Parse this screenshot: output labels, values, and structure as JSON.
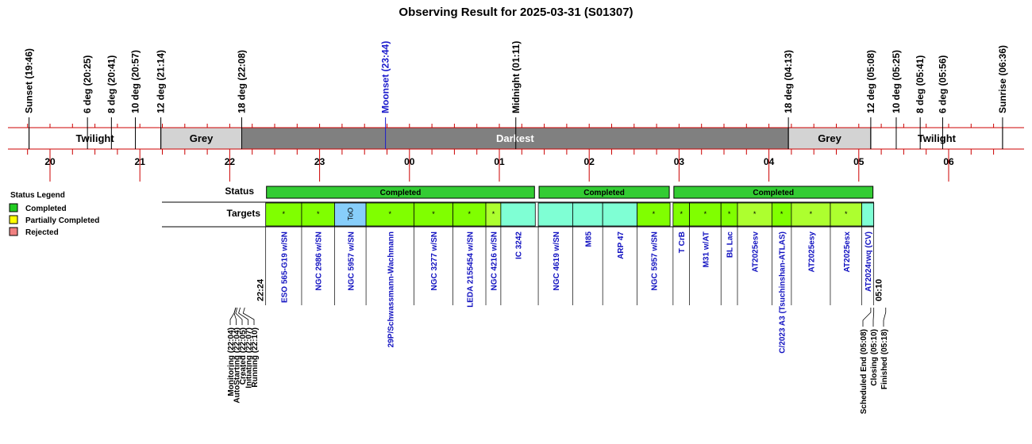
{
  "chart_data": {
    "type": "timeline",
    "title": "Observing Result for 2025-03-31 (S01307)",
    "time_axis": {
      "start": "19:40",
      "end": "06:40",
      "hour_labels": [
        "20",
        "21",
        "22",
        "23",
        "00",
        "01",
        "02",
        "03",
        "04",
        "05",
        "06"
      ]
    },
    "sky_events": [
      {
        "label": "Sunset (19:46)",
        "time": "19:46",
        "color": "#000000"
      },
      {
        "label": "6 deg (20:25)",
        "time": "20:25",
        "color": "#000000"
      },
      {
        "label": "8 deg (20:41)",
        "time": "20:41",
        "color": "#000000"
      },
      {
        "label": "10 deg (20:57)",
        "time": "20:57",
        "color": "#000000"
      },
      {
        "label": "12 deg (21:14)",
        "time": "21:14",
        "color": "#000000"
      },
      {
        "label": "18 deg (22:08)",
        "time": "22:08",
        "color": "#000000"
      },
      {
        "label": "Moonset (23:44)",
        "time": "23:44",
        "color": "#1a1acc"
      },
      {
        "label": "Midnight (01:11)",
        "time": "01:11",
        "color": "#000000"
      },
      {
        "label": "18 deg (04:13)",
        "time": "04:13",
        "color": "#000000"
      },
      {
        "label": "12 deg (05:08)",
        "time": "05:08",
        "color": "#000000"
      },
      {
        "label": "10 deg (05:25)",
        "time": "05:25",
        "color": "#000000"
      },
      {
        "label": "8 deg (05:41)",
        "time": "05:41",
        "color": "#000000"
      },
      {
        "label": "6 deg (05:56)",
        "time": "05:56",
        "color": "#000000"
      },
      {
        "label": "Sunrise (06:36)",
        "time": "06:36",
        "color": "#000000"
      }
    ],
    "sky_bands": [
      {
        "label": "Twilight",
        "start": "19:46",
        "end": "21:14",
        "color": "#ffffff",
        "text_color": "#000000"
      },
      {
        "label": "Grey",
        "start": "21:14",
        "end": "22:08",
        "color": "#d3d3d3",
        "text_color": "#000000"
      },
      {
        "label": "Darkest",
        "start": "22:08",
        "end": "04:13",
        "color": "#808080",
        "text_color": "#ffffff"
      },
      {
        "label": "Grey",
        "start": "04:13",
        "end": "05:08",
        "color": "#d3d3d3",
        "text_color": "#000000"
      },
      {
        "label": "Twilight",
        "start": "05:08",
        "end": "06:36",
        "color": "#ffffff",
        "text_color": "#000000"
      }
    ],
    "rows": [
      "Status",
      "Targets"
    ],
    "status_segments": [
      {
        "label": "Completed",
        "start": "22:24",
        "end": "01:24"
      },
      {
        "label": "Completed",
        "start": "01:26",
        "end": "02:54"
      },
      {
        "label": "Completed",
        "start": "02:56",
        "end": "05:10"
      }
    ],
    "targets": [
      {
        "name": "ESO 565-G19 w/SN",
        "start": "22:24",
        "end": "22:48",
        "color": "#80ff00",
        "mark": "*"
      },
      {
        "name": "NGC 2986 w/SN",
        "start": "22:48",
        "end": "23:10",
        "color": "#80ff00",
        "mark": "*"
      },
      {
        "name": "NGC 5957 w/SN",
        "start": "23:10",
        "end": "23:31",
        "color": "#87cefa",
        "mark": "ToO"
      },
      {
        "name": "29P/Schwassmann-Wachmann",
        "start": "23:31",
        "end": "24:03",
        "color": "#80ff00",
        "mark": "*"
      },
      {
        "name": "NGC 3277 w/SN",
        "start": "24:03",
        "end": "24:29",
        "color": "#80ff00",
        "mark": "*"
      },
      {
        "name": "LEDA 2155454 w/SN",
        "start": "24:29",
        "end": "24:51",
        "color": "#80ff00",
        "mark": "*"
      },
      {
        "name": "NGC 4216 w/SN",
        "start": "24:51",
        "end": "25:01",
        "color": "#adff2f",
        "mark": "*"
      },
      {
        "name": "IC 3242",
        "start": "25:01",
        "end": "25:24",
        "color": "#7fffd4",
        "mark": ""
      },
      {
        "name": "NGC 4619 w/SN",
        "start": "25:26",
        "end": "25:49",
        "color": "#7fffd4",
        "mark": ""
      },
      {
        "name": "M85",
        "start": "25:49",
        "end": "26:09",
        "color": "#7fffd4",
        "mark": ""
      },
      {
        "name": "ARP 47",
        "start": "26:09",
        "end": "26:32",
        "color": "#7fffd4",
        "mark": ""
      },
      {
        "name": "NGC 5957 w/SN",
        "start": "26:32",
        "end": "26:54",
        "color": "#80ff00",
        "mark": "*"
      },
      {
        "name": "T CrB",
        "start": "26:56",
        "end": "27:07",
        "color": "#80ff00",
        "mark": "*"
      },
      {
        "name": "M31 w/AT",
        "start": "27:07",
        "end": "27:28",
        "color": "#80ff00",
        "mark": "*"
      },
      {
        "name": "BL Lac",
        "start": "27:28",
        "end": "27:39",
        "color": "#80ff00",
        "mark": "*"
      },
      {
        "name": "AT2025esv",
        "start": "27:39",
        "end": "28:02",
        "color": "#adff2f",
        "mark": "*"
      },
      {
        "name": "C/2023 A3 (Tsuchinshan-ATLAS)",
        "start": "28:02",
        "end": "28:15",
        "color": "#80ff00",
        "mark": "*"
      },
      {
        "name": "AT2025esy",
        "start": "28:15",
        "end": "28:41",
        "color": "#adff2f",
        "mark": "*"
      },
      {
        "name": "AT2025esx",
        "start": "28:41",
        "end": "29:02",
        "color": "#adff2f",
        "mark": "*"
      },
      {
        "name": "AT2024rwq (CV)",
        "start": "29:02",
        "end": "29:10",
        "color": "#7fffd4",
        "mark": ""
      }
    ],
    "start_time_label": "22:24",
    "end_time_label": "05:10",
    "pre_events": [
      {
        "label": "Monitoring (22:04)",
        "time": "22:04"
      },
      {
        "label": "AutoStarting (22:04)",
        "time": "22:04"
      },
      {
        "label": "Created (22:05)",
        "time": "22:05"
      },
      {
        "label": "Initiating (22:07)",
        "time": "22:07"
      },
      {
        "label": "Running (22:10)",
        "time": "22:10"
      }
    ],
    "post_events": [
      {
        "label": "Scheduled End (05:08)",
        "time": "05:08"
      },
      {
        "label": "Closing (05:10)",
        "time": "05:10"
      },
      {
        "label": "Finished (05:18)",
        "time": "05:18"
      }
    ],
    "legend": {
      "title": "Status Legend",
      "items": [
        {
          "label": "Completed",
          "color": "#22cc22"
        },
        {
          "label": "Partially Completed",
          "color": "#ffff00"
        },
        {
          "label": "Rejected",
          "color": "#f08080"
        }
      ]
    },
    "colors": {
      "axis_line": "#cc0000",
      "completed": "#33cc33"
    }
  }
}
